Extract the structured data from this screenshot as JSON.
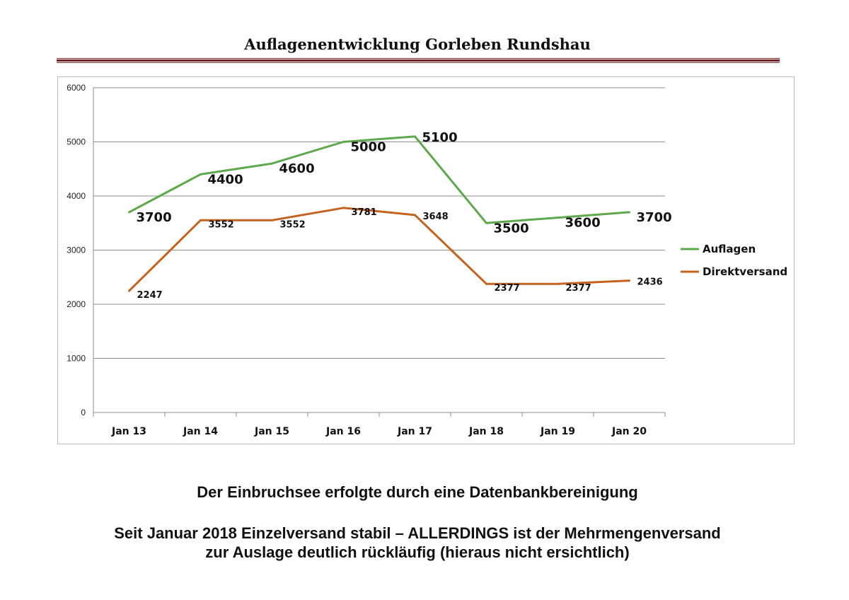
{
  "page": {
    "title": "Auflagenentwicklung Gorleben Rundshau",
    "note1": "Der Einbruchsee erfolgte durch eine Datenbankbereinigung",
    "note2_line1": "Seit Januar 2018 Einzelversand stabil – ALLERDINGS ist der Mehrmengenversand",
    "note2_line2": "zur Auslage deutlich rückläufig (hieraus nicht ersichtlich)"
  },
  "colors": {
    "auflagen": "#5ea84c",
    "direktversand": "#c5631e",
    "grid": "#8c8c8c",
    "title_rule": "#6b1f1f"
  },
  "chart_data": {
    "type": "line",
    "title": "",
    "xlabel": "",
    "ylabel": "",
    "categories": [
      "Jan 13",
      "Jan 14",
      "Jan 15",
      "Jan 16",
      "Jan 17",
      "Jan 18",
      "Jan 19",
      "Jan 20"
    ],
    "ylim": [
      0,
      6000
    ],
    "yticks": [
      0,
      1000,
      2000,
      3000,
      4000,
      5000,
      6000
    ],
    "grid": true,
    "legend_position": "right",
    "series": [
      {
        "name": "Auflagen",
        "values": [
          3700,
          4400,
          4600,
          5000,
          5100,
          3500,
          3600,
          3700
        ]
      },
      {
        "name": "Direktversand",
        "values": [
          2247,
          3552,
          3552,
          3781,
          3648,
          2377,
          2377,
          2436
        ]
      }
    ]
  }
}
